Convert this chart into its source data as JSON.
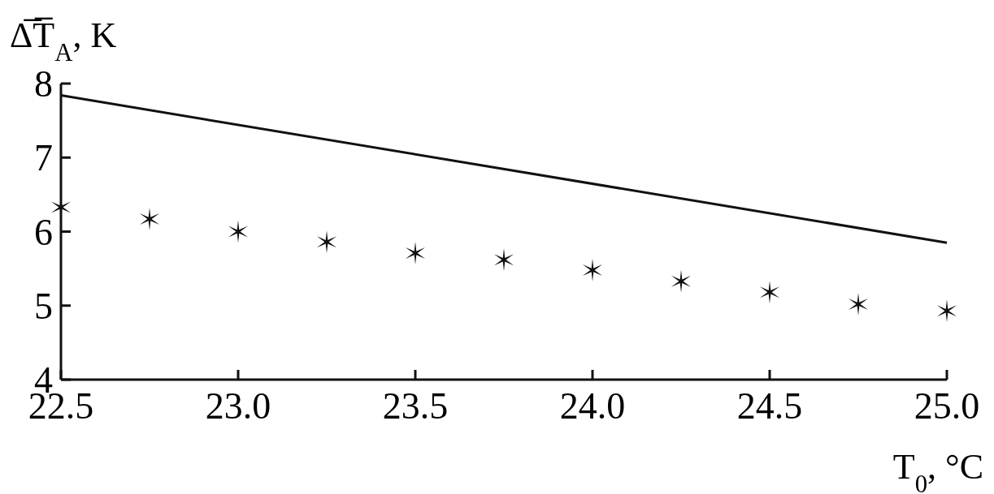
{
  "chart_data": {
    "type": "scatter",
    "xlabel": "T$_{0}$, °C",
    "ylabel": "Δ̅T̅$_{A}$, K",
    "xlim": [
      22.5,
      25.0
    ],
    "xticks": [
      22.5,
      {
        "value": 23,
        "label": "23.0"
      },
      23.5,
      {
        "value": 24,
        "label": "24.0"
      },
      24.5,
      {
        "value": 25,
        "label": "25.0"
      }
    ],
    "ylim": [
      4,
      8
    ],
    "yticks": [
      4,
      5,
      6,
      7,
      8
    ],
    "grid": false,
    "series": [
      {
        "type": "line",
        "color": "#111111",
        "x": [
          22.5,
          25.0
        ],
        "values": [
          7.84,
          5.85
        ],
        "marker": "none",
        "line_style": "solid"
      },
      {
        "color": "#111111",
        "x": [
          22.5,
          22.75,
          23.0,
          23.25,
          23.5,
          23.75,
          24.0,
          24.25,
          24.5,
          24.75,
          25.0
        ],
        "values": [
          6.33,
          6.17,
          6.0,
          5.86,
          5.71,
          5.62,
          5.48,
          5.33,
          5.18,
          5.02,
          4.93
        ],
        "marker": "cross"
      }
    ]
  }
}
